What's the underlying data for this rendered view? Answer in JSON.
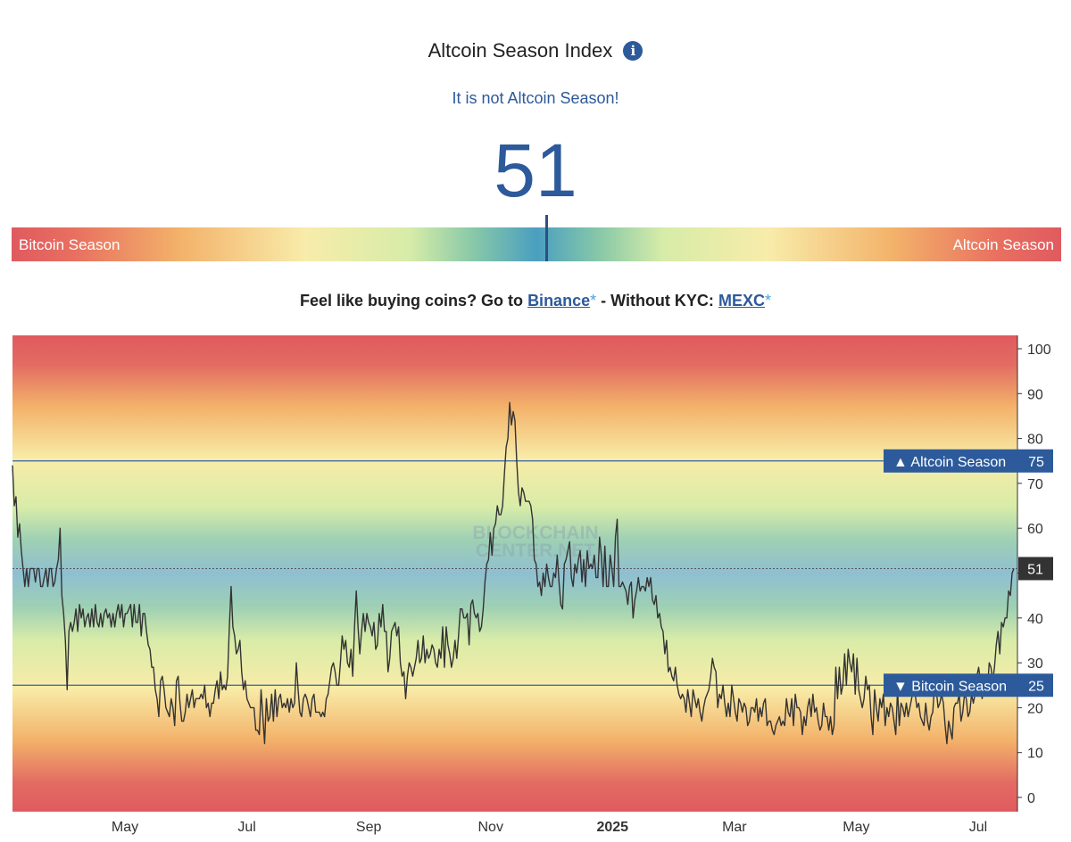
{
  "header": {
    "title": "Altcoin Season Index",
    "info_icon": "info-icon",
    "subtitle": "It is not Altcoin Season!",
    "value": "51"
  },
  "gauge": {
    "left_label": "Bitcoin Season",
    "right_label": "Altcoin Season",
    "value": 51
  },
  "promo": {
    "prefix": "Feel like buying coins? Go to",
    "link1": "Binance",
    "star": "*",
    "middle": "- Without KYC:",
    "link2": "MEXC"
  },
  "chart_data": {
    "type": "line",
    "ylim": [
      0,
      100
    ],
    "yticks": [
      0,
      10,
      20,
      30,
      40,
      50,
      60,
      70,
      80,
      90,
      100
    ],
    "xticks": [
      {
        "label": "May",
        "bold": false
      },
      {
        "label": "Jul",
        "bold": false
      },
      {
        "label": "Sep",
        "bold": false
      },
      {
        "label": "Nov",
        "bold": false
      },
      {
        "label": "2025",
        "bold": true
      },
      {
        "label": "Mar",
        "bold": false
      },
      {
        "label": "May",
        "bold": false
      },
      {
        "label": "Jul",
        "bold": false
      }
    ],
    "watermark": [
      "BLOCKCHAIN",
      "CENTER.NET"
    ],
    "thresholds": [
      {
        "label": "▲ Altcoin Season",
        "value": 75
      },
      {
        "label": "▼ Bitcoin Season",
        "value": 25
      }
    ],
    "current": 51,
    "series": [
      {
        "values": [
          74,
          65,
          67,
          58,
          61,
          55,
          51,
          47,
          51,
          47,
          51,
          51,
          51,
          48,
          51,
          51,
          47,
          47,
          49,
          51,
          47,
          51,
          51,
          47,
          48,
          51,
          53,
          60,
          45,
          41,
          35,
          24,
          37,
          39,
          37,
          39,
          42,
          37,
          43,
          40,
          42,
          38,
          40,
          41,
          38,
          42,
          38,
          43,
          39,
          38,
          41,
          38,
          41,
          42,
          40,
          41,
          38,
          41,
          38,
          41,
          43,
          40,
          43,
          38,
          41,
          41,
          42,
          43,
          38,
          43,
          39,
          39,
          43,
          36,
          41,
          41,
          37,
          34,
          33,
          29,
          29,
          24,
          22,
          18,
          26,
          27,
          24,
          20,
          19,
          18,
          22,
          20,
          16,
          26,
          27,
          21,
          17,
          17,
          19,
          23,
          20,
          22,
          24,
          20,
          22,
          22,
          22,
          23,
          22,
          25,
          20,
          21,
          18,
          21,
          21,
          24,
          26,
          22,
          28,
          24,
          25,
          24,
          27,
          38,
          47,
          38,
          36,
          32,
          33,
          35,
          28,
          24,
          26,
          22,
          21,
          20,
          20,
          20,
          15,
          15,
          14,
          24,
          18,
          12,
          22,
          17,
          18,
          23,
          17,
          24,
          18,
          22,
          23,
          20,
          21,
          20,
          22,
          19,
          22,
          20,
          21,
          30,
          24,
          19,
          18,
          22,
          23,
          22,
          20,
          18,
          22,
          23,
          19,
          19,
          19,
          18,
          19,
          18,
          22,
          23,
          26,
          29,
          30,
          28,
          25,
          25,
          30,
          36,
          33,
          35,
          30,
          29,
          33,
          27,
          38,
          46,
          38,
          32,
          37,
          41,
          37,
          41,
          39,
          38,
          36,
          39,
          33,
          34,
          41,
          38,
          43,
          37,
          37,
          28,
          31,
          37,
          38,
          39,
          36,
          38,
          30,
          27,
          28,
          22,
          27,
          30,
          29,
          27,
          29,
          31,
          35,
          30,
          31,
          36,
          30,
          33,
          31,
          32,
          34,
          33,
          30,
          29,
          33,
          31,
          38,
          29,
          38,
          34,
          32,
          29,
          31,
          35,
          31,
          36,
          42,
          42,
          40,
          40,
          41,
          34,
          43,
          44,
          41,
          40,
          41,
          37,
          38,
          42,
          48,
          52,
          53,
          59,
          54,
          60,
          61,
          65,
          63,
          63,
          65,
          72,
          78,
          80,
          88,
          83,
          86,
          84,
          75,
          68,
          65,
          69,
          68,
          66,
          66,
          66,
          65,
          62,
          53,
          52,
          47,
          48,
          45,
          50,
          47,
          52,
          49,
          47,
          47,
          50,
          49,
          54,
          48,
          43,
          42,
          52,
          53,
          55,
          57,
          49,
          47,
          52,
          50,
          53,
          55,
          48,
          53,
          47,
          55,
          51,
          52,
          51,
          54,
          49,
          49,
          58,
          54,
          47,
          56,
          47,
          47,
          54,
          51,
          47,
          58,
          62,
          47,
          47,
          48,
          47,
          46,
          43,
          47,
          48,
          40,
          44,
          46,
          49,
          46,
          47,
          47,
          46,
          49,
          47,
          49,
          44,
          43,
          45,
          40,
          41,
          38,
          37,
          32,
          35,
          28,
          29,
          27,
          26,
          29,
          25,
          23,
          22,
          23,
          22,
          19,
          24,
          21,
          18,
          24,
          22,
          20,
          22,
          19,
          17,
          20,
          22,
          23,
          24,
          27,
          31,
          29,
          28,
          20,
          23,
          22,
          25,
          21,
          18,
          21,
          18,
          25,
          22,
          19,
          17,
          22,
          21,
          19,
          21,
          20,
          16,
          17,
          20,
          20,
          19,
          22,
          17,
          20,
          18,
          21,
          22,
          16,
          17,
          17,
          15,
          14,
          16,
          17,
          18,
          16,
          17,
          16,
          22,
          19,
          18,
          22,
          16,
          23,
          20,
          20,
          19,
          14,
          18,
          16,
          20,
          22,
          18,
          23,
          19,
          20,
          17,
          15,
          16,
          21,
          18,
          18,
          15,
          18,
          14,
          16,
          29,
          22,
          29,
          23,
          25,
          32,
          25,
          33,
          30,
          28,
          32,
          23,
          31,
          24,
          22,
          20,
          22,
          27,
          24,
          25,
          18,
          14,
          24,
          20,
          17,
          22,
          20,
          23,
          16,
          20,
          18,
          21,
          20,
          17,
          14,
          24,
          16,
          21,
          20,
          18,
          21,
          18,
          20,
          22,
          24,
          23,
          20,
          21,
          18,
          17,
          16,
          21,
          17,
          15,
          18,
          19,
          25,
          24,
          20,
          21,
          23,
          21,
          16,
          12,
          17,
          15,
          13,
          20,
          21,
          21,
          23,
          17,
          19,
          23,
          22,
          18,
          19,
          23,
          21,
          23,
          27,
          29,
          26,
          22,
          25,
          27,
          24,
          30,
          29,
          26,
          29,
          34,
          37,
          32,
          39,
          38,
          40,
          40,
          46,
          45,
          50,
          51
        ]
      }
    ]
  }
}
